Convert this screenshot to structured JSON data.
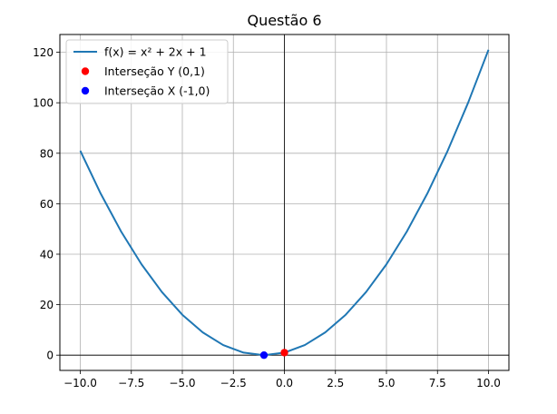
{
  "chart_data": {
    "type": "line",
    "title": "Questão 6",
    "xlabel": "",
    "ylabel": "",
    "xlim": [
      -11,
      11
    ],
    "ylim": [
      -6.05,
      127.05
    ],
    "x_ticks": [
      -10.0,
      -7.5,
      -5.0,
      -2.5,
      0.0,
      2.5,
      5.0,
      7.5,
      10.0
    ],
    "x_tick_labels": [
      "−10.0",
      "−7.5",
      "−5.0",
      "−2.5",
      "0.0",
      "2.5",
      "5.0",
      "7.5",
      "10.0"
    ],
    "y_ticks": [
      0,
      20,
      40,
      60,
      80,
      100,
      120
    ],
    "y_tick_labels": [
      "0",
      "20",
      "40",
      "60",
      "80",
      "100",
      "120"
    ],
    "grid": true,
    "legend_position": "top-left",
    "series": [
      {
        "name": "f(x) = x² + 2x + 1",
        "kind": "line",
        "color": "#1f77b4",
        "x": [
          -10,
          -9,
          -8,
          -7,
          -6,
          -5,
          -4,
          -3,
          -2,
          -1,
          0,
          1,
          2,
          3,
          4,
          5,
          6,
          7,
          8,
          9,
          10
        ],
        "y": [
          81,
          64,
          49,
          36,
          25,
          16,
          9,
          4,
          1,
          0,
          1,
          4,
          9,
          16,
          25,
          36,
          49,
          64,
          81,
          100,
          121
        ]
      },
      {
        "name": "Interseção Y (0,1)",
        "kind": "point",
        "color": "#ff0000",
        "x": [
          0
        ],
        "y": [
          1
        ]
      },
      {
        "name": "Interseção X (-1,0)",
        "kind": "point",
        "color": "#0000ff",
        "x": [
          -1
        ],
        "y": [
          0
        ]
      }
    ],
    "reference_lines": {
      "horizontal_y": 0,
      "vertical_x": 0,
      "color": "#000000"
    }
  }
}
